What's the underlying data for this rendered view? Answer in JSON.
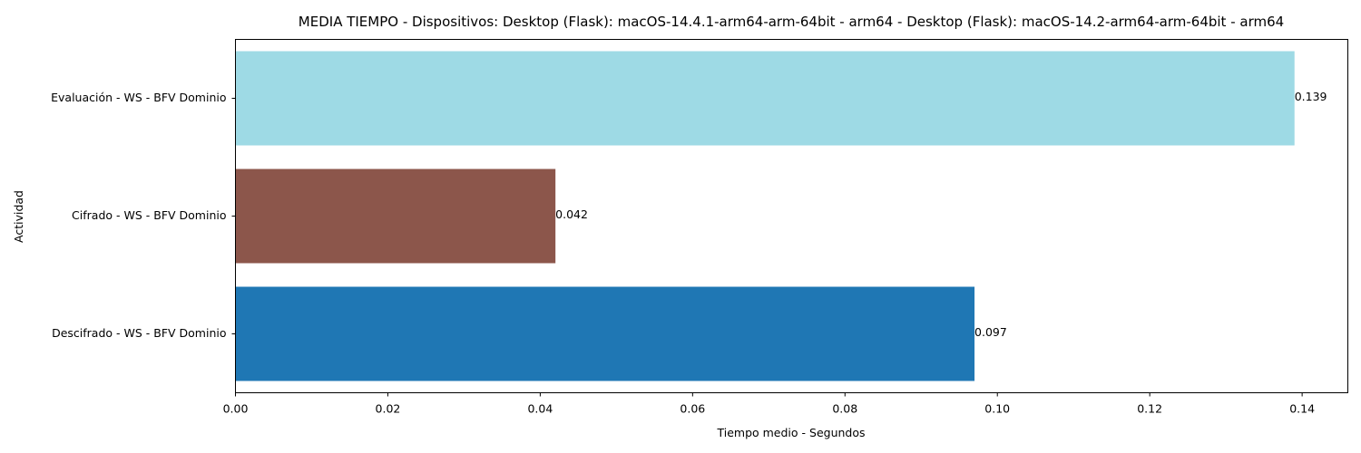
{
  "chart_data": {
    "type": "bar",
    "orientation": "horizontal",
    "title": "MEDIA TIEMPO - Dispositivos: Desktop (Flask): macOS-14.4.1-arm64-arm-64bit - arm64 - Desktop (Flask): macOS-14.2-arm64-arm-64bit - arm64",
    "xlabel": "Tiempo medio - Segundos",
    "ylabel": "Actividad",
    "categories": [
      "Evaluación - WS - BFV Dominio",
      "Cifrado - WS - BFV Dominio",
      "Descifrado - WS - BFV Dominio"
    ],
    "values": [
      0.139,
      0.042,
      0.097
    ],
    "value_labels": [
      "0.139",
      "0.042",
      "0.097"
    ],
    "colors": [
      "#9edae5",
      "#8c564b",
      "#1f77b4"
    ],
    "xlim": [
      0,
      0.146
    ],
    "xticks": [
      0.0,
      0.02,
      0.04,
      0.06,
      0.08,
      0.1,
      0.12,
      0.14
    ],
    "xtick_labels": [
      "0.00",
      "0.02",
      "0.04",
      "0.06",
      "0.08",
      "0.10",
      "0.12",
      "0.14"
    ],
    "grid": false,
    "legend": "none"
  }
}
